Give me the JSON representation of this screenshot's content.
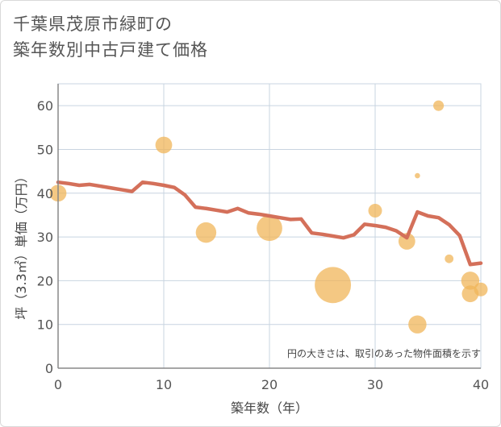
{
  "title": {
    "line1": "千葉県茂原市緑町の",
    "line2": "築年数別中古戸建て価格"
  },
  "chart_data": {
    "type": "scatter+line",
    "xlabel": "築年数（年）",
    "ylabel": "坪（3.3㎡）単価（万円）",
    "xlim": [
      0,
      40
    ],
    "ylim": [
      0,
      65
    ],
    "xticks": [
      0,
      10,
      20,
      30,
      40
    ],
    "yticks": [
      0,
      10,
      20,
      30,
      40,
      50,
      60
    ],
    "grid": true,
    "annotation": "円の大きさは、取引のあった物件面積を示す",
    "colors": {
      "line": "#d4705a",
      "bubble": "#f0b55a",
      "grid": "#c8d4e0",
      "axis": "#888888"
    },
    "bubbles": [
      {
        "x": 0,
        "y": 40,
        "size": 3
      },
      {
        "x": 10,
        "y": 51,
        "size": 3
      },
      {
        "x": 14,
        "y": 31,
        "size": 4.5
      },
      {
        "x": 20,
        "y": 32,
        "size": 7
      },
      {
        "x": 26,
        "y": 19,
        "size": 14
      },
      {
        "x": 30,
        "y": 36,
        "size": 2
      },
      {
        "x": 33,
        "y": 29,
        "size": 3
      },
      {
        "x": 34,
        "y": 44,
        "size": 0.3
      },
      {
        "x": 34,
        "y": 10,
        "size": 3.5
      },
      {
        "x": 36,
        "y": 60,
        "size": 1.2
      },
      {
        "x": 37,
        "y": 25,
        "size": 0.8
      },
      {
        "x": 39,
        "y": 20,
        "size": 3.5
      },
      {
        "x": 39,
        "y": 17,
        "size": 3
      },
      {
        "x": 40,
        "y": 18,
        "size": 2
      }
    ],
    "line": {
      "x": [
        0,
        1,
        2,
        3,
        4,
        5,
        6,
        7,
        8,
        9,
        10,
        11,
        12,
        13,
        14,
        15,
        16,
        17,
        18,
        19,
        20,
        21,
        22,
        23,
        24,
        25,
        26,
        27,
        28,
        29,
        30,
        31,
        32,
        33,
        34,
        35,
        36,
        37,
        38,
        39,
        40
      ],
      "y": [
        42.5,
        42.2,
        41.8,
        42,
        41.6,
        41.2,
        40.8,
        40.4,
        42.5,
        42.2,
        41.8,
        41.3,
        39.6,
        36.8,
        36.5,
        36.1,
        35.7,
        36.5,
        35.5,
        35.2,
        34.8,
        34.4,
        34,
        34.1,
        30.9,
        30.6,
        30.2,
        29.8,
        30.5,
        32.9,
        32.6,
        32.2,
        31.4,
        29.8,
        35.7,
        34.8,
        34.4,
        32.8,
        30.3,
        23.7,
        24
      ]
    }
  }
}
